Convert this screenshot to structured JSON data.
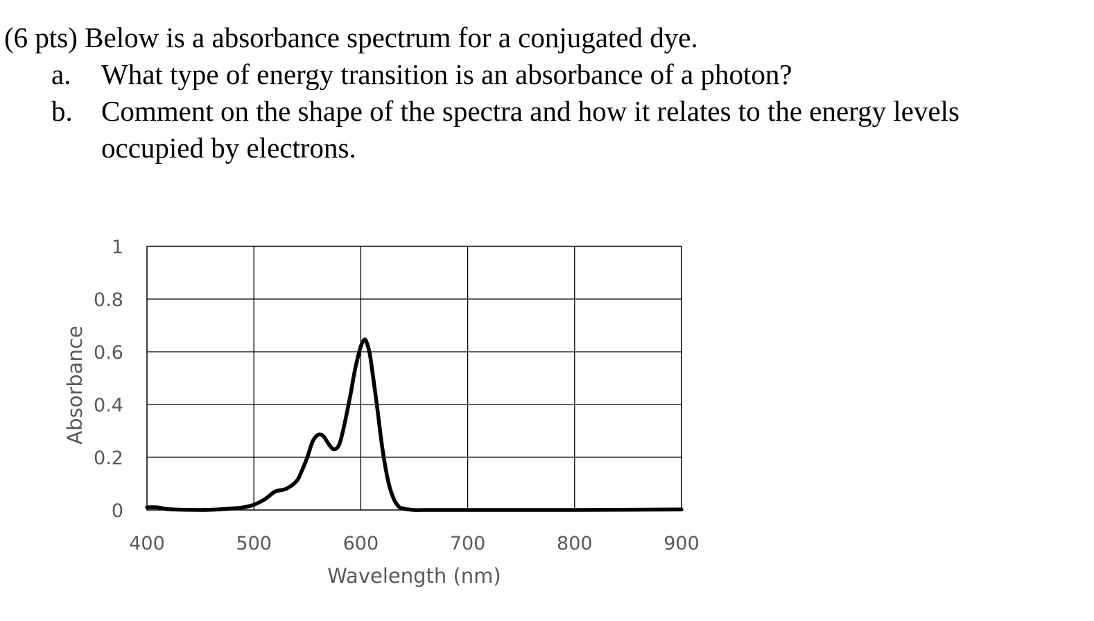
{
  "question": {
    "header": "(6 pts) Below is a absorbance spectrum for a conjugated dye.",
    "parts": [
      {
        "letter": "a.",
        "lines": [
          "What type of energy transition is an absorbance of a photon?"
        ]
      },
      {
        "letter": "b.",
        "lines": [
          "Comment on the shape of the spectra and how it relates to the energy levels",
          "occupied by electrons."
        ]
      }
    ]
  },
  "chart_data": {
    "type": "line",
    "title": "",
    "xlabel": "Wavelength (nm)",
    "ylabel": "Absorbance",
    "xlim": [
      400,
      900
    ],
    "ylim": [
      0,
      1
    ],
    "xticks": [
      400,
      500,
      600,
      700,
      800,
      900
    ],
    "xtick_labels": [
      "400",
      "500",
      "600",
      "700",
      "800",
      "900"
    ],
    "yticks": [
      0,
      0.2,
      0.4,
      0.6,
      0.8,
      1
    ],
    "ytick_labels": [
      "0",
      "0.2",
      "0.4",
      "0.6",
      "0.8",
      "1"
    ],
    "grid": true,
    "legend": "none",
    "series": [
      {
        "color": "#000000",
        "x": [
          400,
          410,
          420,
          450,
          470,
          490,
          500,
          510,
          520,
          530,
          540,
          545,
          550,
          555,
          560,
          565,
          570,
          575,
          580,
          585,
          590,
          595,
          600,
          603,
          605,
          608,
          610,
          615,
          620,
          625,
          630,
          635,
          640,
          650,
          660,
          700,
          800,
          900
        ],
        "y": [
          0.01,
          0.01,
          0.003,
          0.0,
          0.003,
          0.01,
          0.02,
          0.04,
          0.07,
          0.08,
          0.11,
          0.15,
          0.2,
          0.26,
          0.285,
          0.28,
          0.25,
          0.23,
          0.25,
          0.33,
          0.43,
          0.54,
          0.62,
          0.645,
          0.64,
          0.6,
          0.55,
          0.4,
          0.24,
          0.12,
          0.05,
          0.015,
          0.005,
          0.0,
          0.0,
          0.0,
          0.0,
          0.002
        ]
      }
    ]
  }
}
